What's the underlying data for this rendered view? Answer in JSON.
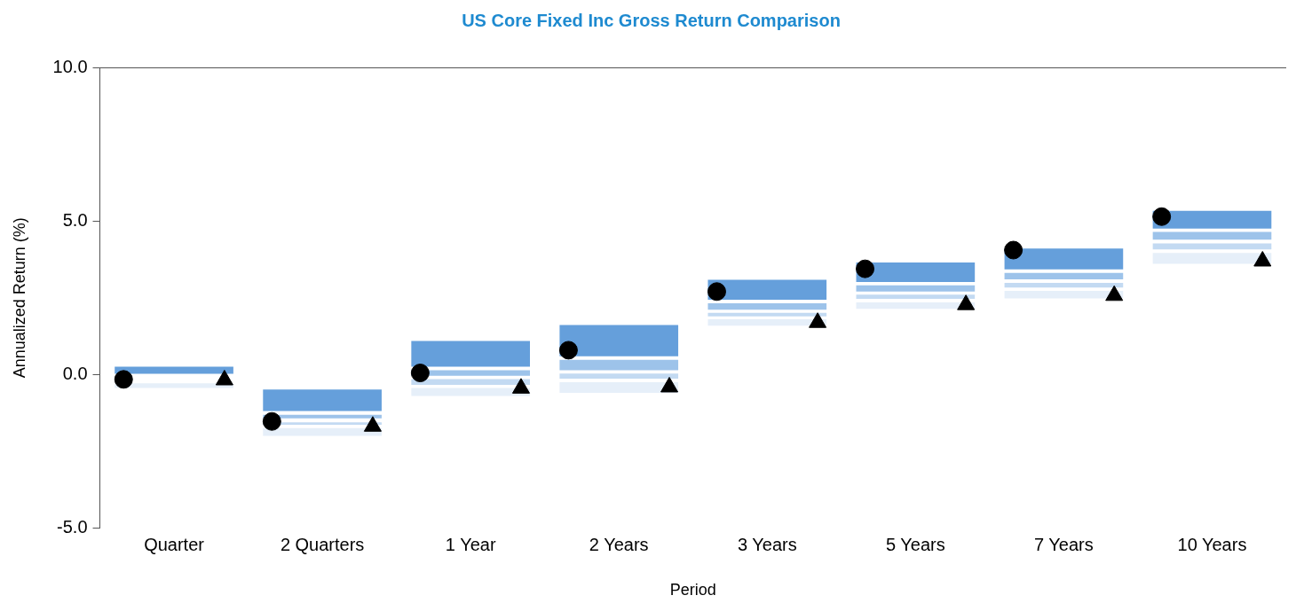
{
  "chart_data": {
    "type": "bar",
    "title": "US Core Fixed Inc Gross Return Comparison",
    "xlabel": "Period",
    "ylabel": "Annualized Return (%)",
    "categories": [
      "Quarter",
      "2 Quarters",
      "1 Year",
      "2 Years",
      "3 Years",
      "5 Years",
      "7 Years",
      "10 Years"
    ],
    "ylim": [
      -5,
      10
    ],
    "yticks": [
      {
        "value": -5,
        "label": "-5.0"
      },
      {
        "value": 0,
        "label": "0.0"
      },
      {
        "value": 5,
        "label": "5.0"
      },
      {
        "value": 10,
        "label": "10.0"
      }
    ],
    "grid": false,
    "legend": false,
    "series": [
      {
        "color": "#659fdb",
        "base": [
          0.02,
          -1.19,
          0.25,
          0.59,
          2.43,
          3.01,
          3.42,
          4.75
        ],
        "values": [
          0.23,
          0.7,
          0.84,
          1.02,
          0.65,
          0.64,
          0.68,
          0.58
        ]
      },
      {
        "color": "#9dc3ea",
        "base": [
          null,
          -1.43,
          -0.04,
          0.14,
          2.11,
          2.7,
          3.1,
          4.39
        ],
        "values": [
          null,
          0.12,
          0.18,
          0.34,
          0.21,
          0.2,
          0.21,
          0.25
        ]
      },
      {
        "color": "#c3daf2",
        "base": [
          null,
          -1.64,
          -0.34,
          -0.14,
          1.89,
          2.46,
          2.83,
          4.07
        ],
        "values": [
          null,
          0.08,
          0.19,
          0.17,
          0.12,
          0.14,
          0.15,
          0.2
        ]
      },
      {
        "color": "#e6eff9",
        "base": [
          -0.44,
          -2.0,
          -0.7,
          -0.6,
          1.59,
          2.14,
          2.48,
          3.6
        ],
        "values": [
          0.15,
          0.25,
          0.26,
          0.35,
          0.21,
          0.21,
          0.24,
          0.36
        ]
      },
      {
        "type": "scatter",
        "marker": "circle",
        "color": "#000000",
        "x": [
          "Quarter",
          "2 Quarters",
          "1 Year",
          "2 Years",
          "3 Years",
          "5 Years",
          "7 Years",
          "10 Years"
        ],
        "values": [
          -0.16,
          -1.53,
          0.05,
          0.79,
          2.7,
          3.44,
          4.05,
          5.14
        ]
      },
      {
        "type": "scatter",
        "marker": "triangle",
        "color": "#000000",
        "x": [
          "Quarter",
          "2 Quarters",
          "1 Year",
          "2 Years",
          "3 Years",
          "5 Years",
          "7 Years",
          "10 Years"
        ],
        "values": [
          -0.18,
          -1.69,
          -0.45,
          -0.41,
          1.69,
          2.27,
          2.57,
          3.69
        ]
      }
    ]
  }
}
